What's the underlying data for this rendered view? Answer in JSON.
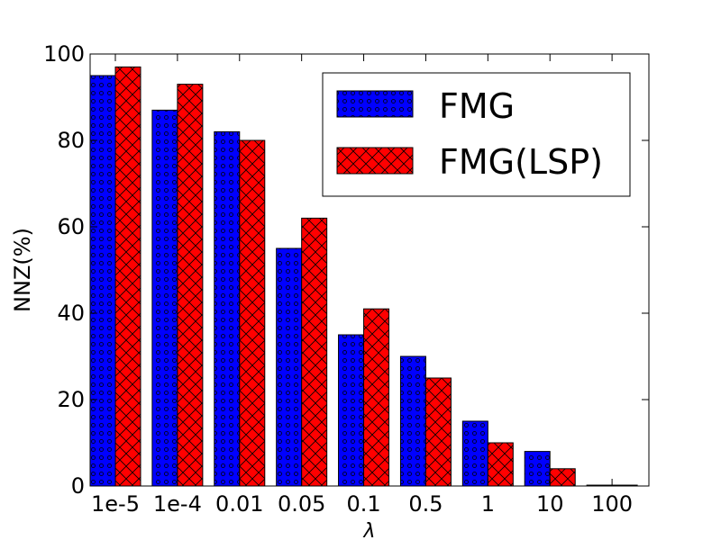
{
  "chart_data": {
    "type": "bar",
    "title": "",
    "xlabel": "λ",
    "ylabel": "NNZ(%)",
    "ylim": [
      0,
      100
    ],
    "yticks": [
      0,
      20,
      40,
      60,
      80,
      100
    ],
    "grid": false,
    "legend_position": "top-right",
    "categories": [
      "1e-5",
      "1e-4",
      "0.01",
      "0.05",
      "0.1",
      "0.5",
      "1",
      "10",
      "100"
    ],
    "series": [
      {
        "name": "FMG",
        "color": "#0000ff",
        "pattern": "dots",
        "values": [
          95,
          87,
          82,
          55,
          35,
          30,
          15,
          8,
          0.2
        ]
      },
      {
        "name": "FMG(LSP)",
        "color": "#ff0000",
        "pattern": "crosshatch",
        "values": [
          97,
          93,
          80,
          62,
          41,
          25,
          10,
          4,
          0.2
        ]
      }
    ]
  }
}
